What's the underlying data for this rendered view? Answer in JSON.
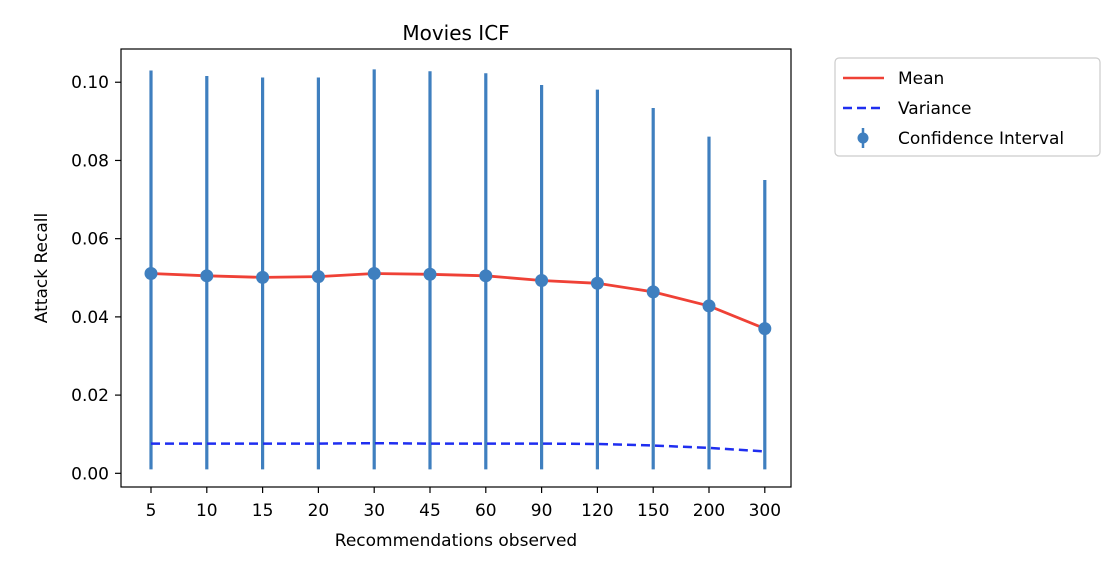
{
  "chart_data": {
    "type": "line",
    "title": "Movies ICF",
    "xlabel": "Recommendations observed",
    "ylabel": "Attack Recall",
    "categories": [
      "5",
      "10",
      "15",
      "20",
      "30",
      "45",
      "60",
      "90",
      "120",
      "150",
      "200",
      "300"
    ],
    "ylim": [
      -0.0035,
      0.1085
    ],
    "yticks": [
      "0.00",
      "0.02",
      "0.04",
      "0.06",
      "0.08",
      "0.10"
    ],
    "grid": false,
    "legend_position": "outside-top-right",
    "series": [
      {
        "name": "Mean",
        "style": "solid",
        "color": "#ef4136",
        "values": [
          0.0511,
          0.0505,
          0.0501,
          0.0503,
          0.0511,
          0.0509,
          0.0505,
          0.0493,
          0.0486,
          0.0464,
          0.0428,
          0.037
        ]
      },
      {
        "name": "Variance",
        "style": "dashed",
        "color": "#1f2ef0",
        "values": [
          0.0076,
          0.0076,
          0.0076,
          0.0076,
          0.0077,
          0.0076,
          0.0076,
          0.0076,
          0.0075,
          0.0071,
          0.0065,
          0.0056
        ]
      },
      {
        "name": "Confidence Interval",
        "style": "errorbar",
        "color": "#3f7fbf",
        "values": [
          0.0511,
          0.0505,
          0.0501,
          0.0503,
          0.0511,
          0.0509,
          0.0505,
          0.0493,
          0.0486,
          0.0464,
          0.0428,
          0.037
        ],
        "lower": [
          0.001,
          0.001,
          0.001,
          0.001,
          0.001,
          0.001,
          0.001,
          0.001,
          0.001,
          0.001,
          0.001,
          0.001
        ],
        "upper": [
          0.103,
          0.1016,
          0.1012,
          0.1012,
          0.1033,
          0.1028,
          0.1023,
          0.0993,
          0.0981,
          0.0934,
          0.0861,
          0.075
        ]
      }
    ]
  }
}
